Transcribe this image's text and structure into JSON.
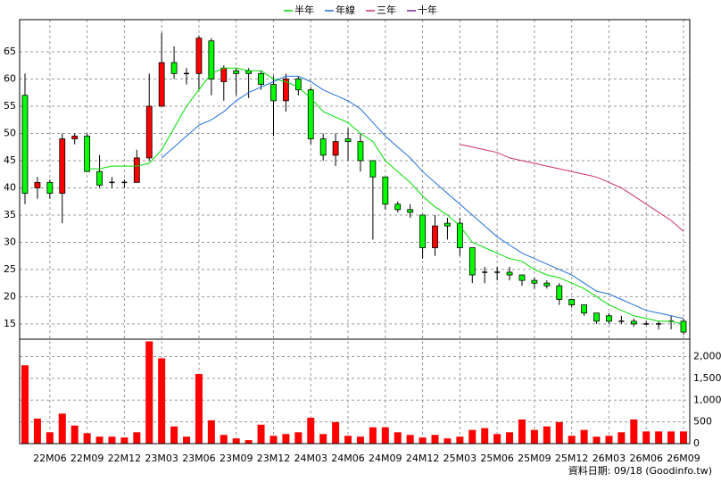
{
  "chart_data": {
    "type": "candlestick",
    "categories": [
      null,
      null,
      "22M06",
      null,
      null,
      "22M09",
      null,
      null,
      "22M12",
      null,
      null,
      "23M03",
      null,
      null,
      "23M06",
      null,
      null,
      "23M09",
      null,
      null,
      "23M12",
      null,
      null,
      "24M03",
      null,
      null,
      "24M06",
      null,
      null,
      "24M09",
      null,
      null,
      "24M12",
      null,
      null,
      "25M03",
      null,
      null,
      "25M06",
      null,
      null,
      "25M09",
      null,
      null,
      "25M12",
      null,
      null,
      "26M03",
      null,
      null,
      "26M06",
      null,
      null,
      "26M09"
    ],
    "open": [
      57,
      40,
      41,
      39,
      49,
      49.5,
      43,
      41,
      41,
      41,
      45.5,
      55,
      63,
      61,
      61,
      67,
      59.5,
      61.5,
      61.5,
      61,
      59,
      56,
      60,
      58,
      49,
      46,
      49,
      48.5,
      45,
      42,
      37,
      36,
      35,
      29,
      33.5,
      33.5,
      29,
      24.5,
      24.5,
      24.5,
      24,
      23,
      22.5,
      22,
      19.5,
      18.5,
      17,
      16.5,
      15.5,
      15.5,
      15,
      15,
      15.5,
      15.5
    ],
    "high": [
      61,
      42,
      41.5,
      50,
      50,
      50,
      46,
      42,
      41.5,
      47,
      61,
      68.5,
      66,
      62,
      68,
      67.5,
      62.5,
      62,
      62,
      61.5,
      60.5,
      61,
      60.5,
      58.5,
      50,
      50,
      51,
      50,
      45,
      42,
      37.5,
      37,
      35,
      35,
      34.5,
      34.5,
      29,
      25.5,
      25.5,
      25.5,
      24,
      23.5,
      23,
      22.5,
      19.5,
      18.5,
      17,
      17,
      16.5,
      16,
      15.5,
      15.5,
      16.5,
      16
    ],
    "low": [
      37,
      38,
      38,
      33.5,
      48,
      43,
      40,
      40,
      40,
      41,
      45,
      55,
      60,
      59,
      58,
      57,
      56,
      57,
      56.5,
      58,
      49.5,
      54,
      57,
      48,
      45,
      44,
      45,
      43,
      30.5,
      36,
      35.5,
      34.5,
      27,
      27.5,
      30.5,
      27.5,
      22.5,
      22.5,
      23,
      23,
      22,
      21.5,
      21.5,
      18.5,
      18,
      16.5,
      15,
      15,
      15,
      14.5,
      14.8,
      14,
      14,
      13
    ],
    "close": [
      39,
      41,
      39,
      49,
      49.5,
      43,
      40.5,
      41,
      41,
      45.5,
      55,
      63,
      61,
      61,
      67.5,
      60,
      62,
      61,
      61,
      59,
      56,
      60,
      58,
      49,
      46,
      48.5,
      48.5,
      45,
      42,
      37,
      36,
      35.5,
      29,
      33,
      33,
      29,
      24,
      24.5,
      24.5,
      24,
      23,
      22.5,
      22,
      19.5,
      18.5,
      17,
      15.5,
      15.5,
      15.5,
      15,
      15,
      15,
      15.5,
      13.5
    ],
    "up_color": "#ff0000",
    "down_color": "#00ff00",
    "series": [
      {
        "name": "半年",
        "color": "#00dd00",
        "values": [
          null,
          null,
          null,
          null,
          null,
          43.5,
          43.5,
          44,
          44,
          44,
          44.5,
          47,
          51,
          55,
          58,
          61,
          62,
          62,
          61.5,
          61.5,
          60,
          59.5,
          58.5,
          56.5,
          54,
          53,
          52,
          50,
          48.5,
          45,
          43,
          41,
          38.5,
          36.5,
          35,
          33,
          30,
          29,
          28,
          27,
          26.5,
          25,
          24,
          23.5,
          22.5,
          21.5,
          20,
          18.5,
          17.5,
          16.5,
          16,
          15.5,
          15.5,
          15
        ]
      },
      {
        "name": "年線",
        "color": "#1e6fd9",
        "values": [
          null,
          null,
          null,
          null,
          null,
          null,
          null,
          null,
          null,
          null,
          null,
          45.5,
          47.5,
          49.5,
          51.5,
          52.5,
          54,
          56,
          57.5,
          58.5,
          59.5,
          60.5,
          60.5,
          59.5,
          58,
          57,
          56,
          54.5,
          52,
          49.5,
          47.5,
          45.5,
          43,
          41,
          39,
          37,
          35,
          33,
          31,
          29.5,
          28,
          27,
          26,
          25,
          24,
          22.5,
          21,
          20.5,
          19.5,
          18.5,
          17.5,
          17,
          16.5,
          16
        ]
      },
      {
        "name": "三年",
        "color": "#d0306a",
        "values": [
          null,
          null,
          null,
          null,
          null,
          null,
          null,
          null,
          null,
          null,
          null,
          null,
          null,
          null,
          null,
          null,
          null,
          null,
          null,
          null,
          null,
          null,
          null,
          null,
          null,
          null,
          null,
          null,
          null,
          null,
          null,
          null,
          null,
          null,
          null,
          48,
          47.5,
          47,
          46.5,
          45.5,
          45,
          44.5,
          44,
          43.5,
          43,
          42.5,
          42,
          41,
          40,
          38.5,
          37,
          35.5,
          34,
          32
        ]
      },
      {
        "name": "十年",
        "color": "#7a1f9e",
        "values": [
          null,
          null,
          null,
          null,
          null,
          null,
          null,
          null,
          null,
          null,
          null,
          null,
          null,
          null,
          null,
          null,
          null,
          null,
          null,
          null,
          null,
          null,
          null,
          null,
          null,
          null,
          null,
          null,
          null,
          null,
          null,
          null,
          null,
          null,
          null,
          null,
          null,
          null,
          null,
          null,
          null,
          null,
          null,
          null,
          null,
          null,
          null,
          null,
          null,
          null,
          null,
          null,
          null,
          null
        ]
      }
    ],
    "ylim": [
      12.2,
      70.9
    ],
    "yticks": [
      15,
      20,
      25,
      30,
      35,
      40,
      45,
      50,
      55,
      60,
      65
    ],
    "grid": true,
    "volume": {
      "color": "#ff0000",
      "ylim": [
        0,
        2400
      ],
      "yticks": [
        0,
        500,
        {
          "value": 1000,
          "label": "1,000"
        },
        {
          "value": 1500,
          "label": "1,500"
        },
        {
          "value": 2000,
          "label": "2,000"
        }
      ],
      "values": [
        1800,
        575,
        260,
        690,
        415,
        240,
        160,
        160,
        140,
        260,
        2350,
        1960,
        395,
        160,
        1600,
        535,
        200,
        120,
        80,
        435,
        180,
        220,
        260,
        595,
        220,
        495,
        180,
        160,
        375,
        375,
        260,
        200,
        140,
        200,
        120,
        160,
        315,
        355,
        220,
        260,
        555,
        315,
        395,
        495,
        180,
        315,
        160,
        180,
        260,
        555,
        280,
        280,
        280,
        280
      ]
    },
    "source": "資料日期: 09/18 (Goodinfo.tw)"
  }
}
